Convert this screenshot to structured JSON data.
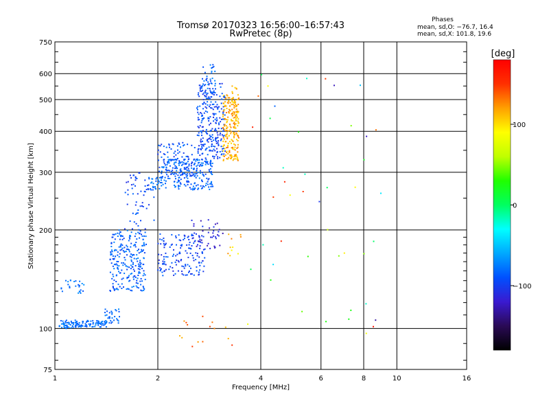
{
  "chart_data": {
    "type": "scatter",
    "title": "Tromsø 20170323 16:56:00–16:57:43",
    "subtitle": "RwPretec (8p)",
    "xlabel": "Frequency [MHz]",
    "ylabel": "Stationary phase Virtual Height [km]",
    "x_scale": "log",
    "y_scale": "log",
    "xlim": [
      1,
      16
    ],
    "ylim": [
      75,
      750
    ],
    "x_ticks": [
      1,
      2,
      4,
      6,
      8,
      10,
      16
    ],
    "x_tick_labels": [
      "1",
      "2",
      "4",
      "6",
      "8",
      "10",
      "16"
    ],
    "y_ticks": [
      75,
      100,
      200,
      300,
      400,
      500,
      600,
      750
    ],
    "y_tick_labels": [
      "75",
      "100",
      "200",
      "300",
      "400",
      "500",
      "600",
      "750"
    ],
    "grid": true,
    "phases_box": {
      "title": "Phases",
      "line1": "mean, sd,O: −76.7, 16.4",
      "line2": "mean, sd,X: 101.8, 19.6"
    },
    "colorbar": {
      "label": "[deg]",
      "range": [
        -180,
        180
      ],
      "ticks": [
        100,
        0,
        -100
      ],
      "tick_labels": [
        "100",
        "0",
        "−100"
      ],
      "colors": [
        "#000000",
        "#2a0a55",
        "#3a1ad0",
        "#0050ff",
        "#00a8ff",
        "#00ffff",
        "#00ff60",
        "#20ff00",
        "#c0ff00",
        "#ffff00",
        "#ffa000",
        "#ff3000",
        "#ff0000"
      ]
    },
    "point_groups": [
      {
        "name": "",
        "x": [
          1.03,
          1.18
        ],
        "y": [
          100,
          106
        ],
        "n": 60,
        "phase": [
          -90,
          -70
        ]
      },
      {
        "name": "",
        "x": [
          1.18,
          1.42
        ],
        "y": [
          101,
          106
        ],
        "n": 70,
        "phase": [
          -90,
          -70
        ]
      },
      {
        "name": "",
        "x": [
          1.4,
          1.55
        ],
        "y": [
          103,
          115
        ],
        "n": 30,
        "phase": [
          -95,
          -70
        ]
      },
      {
        "name": "",
        "x": [
          1.04,
          1.22
        ],
        "y": [
          128,
          142
        ],
        "n": 25,
        "phase": [
          -90,
          -65
        ]
      },
      {
        "name": "",
        "x": [
          1.45,
          1.85
        ],
        "y": [
          130,
          200
        ],
        "n": 250,
        "phase": [
          -100,
          -70
        ]
      },
      {
        "name": "",
        "x": [
          1.6,
          1.95
        ],
        "y": [
          200,
          300
        ],
        "n": 60,
        "phase": [
          -110,
          -80
        ]
      },
      {
        "name": "",
        "x": [
          2.0,
          2.75
        ],
        "y": [
          145,
          195
        ],
        "n": 160,
        "phase": [
          -110,
          -80
        ]
      },
      {
        "name": "",
        "x": [
          2.5,
          3.1
        ],
        "y": [
          175,
          215
        ],
        "n": 40,
        "phase": [
          -130,
          -100
        ]
      },
      {
        "name": "",
        "x": [
          1.9,
          2.1
        ],
        "y": [
          265,
          290
        ],
        "n": 30,
        "phase": [
          -90,
          -70
        ]
      },
      {
        "name": "",
        "x": [
          2.05,
          2.9
        ],
        "y": [
          265,
          330
        ],
        "n": 220,
        "phase": [
          -100,
          -70
        ]
      },
      {
        "name": "",
        "x": [
          2.0,
          2.6
        ],
        "y": [
          290,
          370
        ],
        "n": 100,
        "phase": [
          -105,
          -75
        ]
      },
      {
        "name": "",
        "x": [
          2.6,
          3.15
        ],
        "y": [
          330,
          560
        ],
        "n": 250,
        "phase": [
          -110,
          -80
        ]
      },
      {
        "name": "",
        "x": [
          2.7,
          2.95
        ],
        "y": [
          480,
          640
        ],
        "n": 50,
        "phase": [
          -100,
          -70
        ]
      },
      {
        "name": "",
        "x": [
          3.1,
          3.45
        ],
        "y": [
          325,
          520
        ],
        "n": 200,
        "phase": [
          95,
          135
        ]
      },
      {
        "name": "",
        "x": [
          3.3,
          3.45
        ],
        "y": [
          380,
          560
        ],
        "n": 30,
        "phase": [
          100,
          130
        ]
      },
      {
        "name": "",
        "x": [
          2.3,
          3.3
        ],
        "y": [
          86,
          110
        ],
        "n": 15,
        "phase": [
          110,
          150
        ]
      },
      {
        "name": "",
        "x": [
          3.2,
          3.5
        ],
        "y": [
          160,
          195
        ],
        "n": 10,
        "phase": [
          90,
          130
        ]
      },
      {
        "name": "",
        "x": [
          3.6,
          9.5
        ],
        "y": [
          95,
          620
        ],
        "n": 45,
        "phase": [
          -140,
          170
        ]
      }
    ]
  }
}
